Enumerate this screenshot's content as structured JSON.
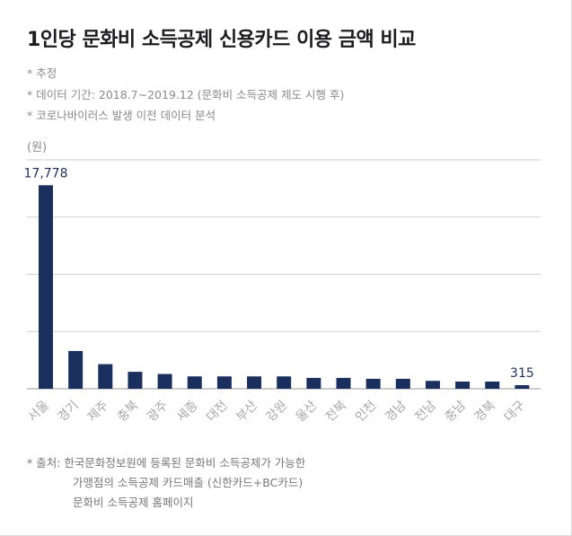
{
  "title": "1인당 문화비 소득공제 신용카드 이용 금액 비교",
  "notes": [
    "* 추정",
    "* 데이터 기간: 2018.7~2019.12 (문화비 소득공제 제도 시행 후)",
    "* 코로나바이러스 발생 이전 데이터 분석"
  ],
  "unit_label": "(원)",
  "source": {
    "line1": "* 출처: 한국문화정보원에 등록된 문화비 소득공제가 가능한",
    "line2": "가맹점의 소득공제 카드매출 (신한카드+BC카드)",
    "line3": "문화비 소득공제 홈페이지"
  },
  "colors": {
    "bar": "#1b2f5e",
    "grid": "#cfcfcf",
    "label": "#1b2f5e",
    "tick": "#a6a6a6"
  },
  "chart_data": {
    "type": "bar",
    "categories": [
      "서울",
      "경기",
      "제주",
      "충북",
      "광주",
      "세종",
      "대전",
      "부산",
      "강원",
      "울산",
      "전북",
      "인천",
      "경남",
      "전남",
      "충남",
      "경북",
      "대구"
    ],
    "values": [
      17778,
      3300,
      2150,
      1480,
      1290,
      1080,
      1080,
      1080,
      1080,
      950,
      950,
      870,
      870,
      690,
      630,
      630,
      315
    ],
    "data_labels": [
      {
        "category": "서울",
        "text": "17,778"
      },
      {
        "category": "대구",
        "text": "315"
      }
    ],
    "ylim": [
      0,
      20000
    ],
    "gridlines": [
      0,
      5000,
      10000,
      15000,
      20000
    ],
    "grid": true,
    "legend": "none"
  }
}
